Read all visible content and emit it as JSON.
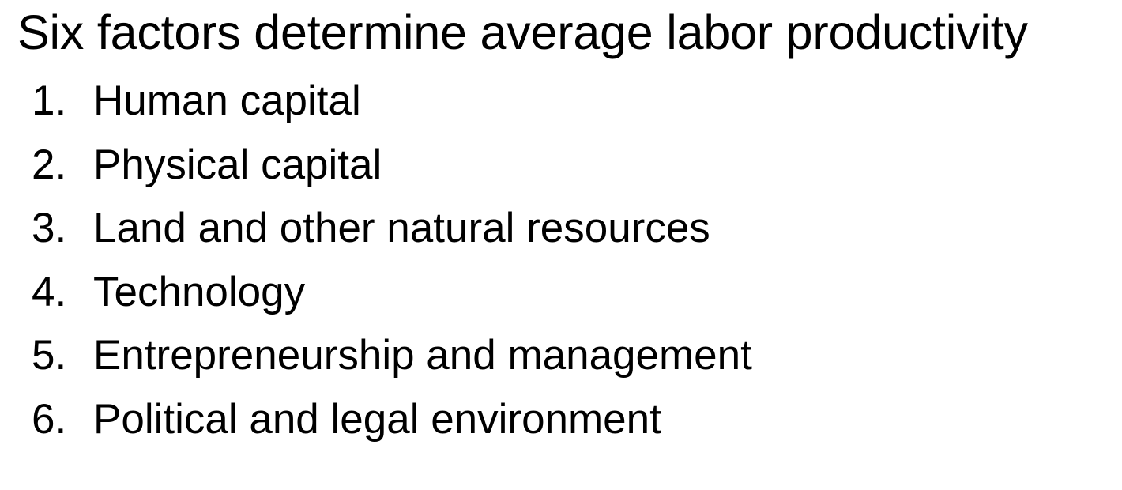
{
  "slide": {
    "title": "Six factors determine average labor productivity",
    "factors": [
      {
        "number": "1.",
        "label": "Human capital"
      },
      {
        "number": "2.",
        "label": "Physical capital"
      },
      {
        "number": "3.",
        "label": "Land and other natural resources"
      },
      {
        "number": "4.",
        "label": "Technology"
      },
      {
        "number": "5.",
        "label": "Entrepreneurship and management"
      },
      {
        "number": "6.",
        "label": "Political and legal environment"
      }
    ]
  }
}
